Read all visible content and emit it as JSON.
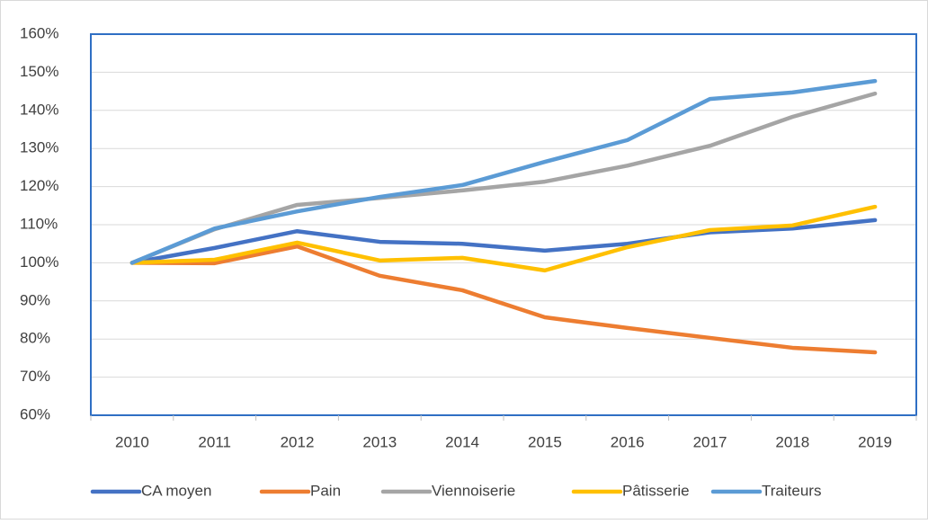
{
  "chart_data": {
    "type": "line",
    "categories": [
      "2010",
      "2011",
      "2012",
      "2013",
      "2014",
      "2015",
      "2016",
      "2017",
      "2018",
      "2019"
    ],
    "series": [
      {
        "name": "CA moyen",
        "color": "#4472c4",
        "values": [
          100,
          103.9,
          108.3,
          105.5,
          105,
          103.2,
          105,
          108,
          109,
          111.2
        ]
      },
      {
        "name": "Pain",
        "color": "#ed7d31",
        "values": [
          100,
          99.9,
          104.3,
          96.6,
          92.8,
          85.7,
          82.9,
          80.3,
          77.7,
          76.5
        ]
      },
      {
        "name": "Viennoiserie",
        "color": "#a5a5a5",
        "values": [
          100,
          108.8,
          115.2,
          117,
          119,
          121.3,
          125.5,
          130.7,
          138.3,
          144.4
        ]
      },
      {
        "name": "Pâtisserie",
        "color": "#ffc000",
        "values": [
          100,
          100.8,
          105.3,
          100.6,
          101.3,
          98,
          104.1,
          108.6,
          109.8,
          114.7
        ]
      },
      {
        "name": "Traiteurs",
        "color": "#5b9bd5",
        "values": [
          100,
          109,
          113.5,
          117.3,
          120.4,
          126.5,
          132.2,
          143,
          144.7,
          147.7
        ]
      }
    ],
    "ylim": [
      60,
      160
    ],
    "yticks": [
      {
        "value": 60,
        "label": "60%"
      },
      {
        "value": 70,
        "label": "70%"
      },
      {
        "value": 80,
        "label": "80%"
      },
      {
        "value": 90,
        "label": "90%"
      },
      {
        "value": 100,
        "label": "100%"
      },
      {
        "value": 110,
        "label": "110%"
      },
      {
        "value": 120,
        "label": "120%"
      },
      {
        "value": 130,
        "label": "130%"
      },
      {
        "value": 140,
        "label": "140%"
      },
      {
        "value": 150,
        "label": "150%"
      },
      {
        "value": 160,
        "label": "160%"
      }
    ],
    "grid": true,
    "legend": "bottom"
  }
}
